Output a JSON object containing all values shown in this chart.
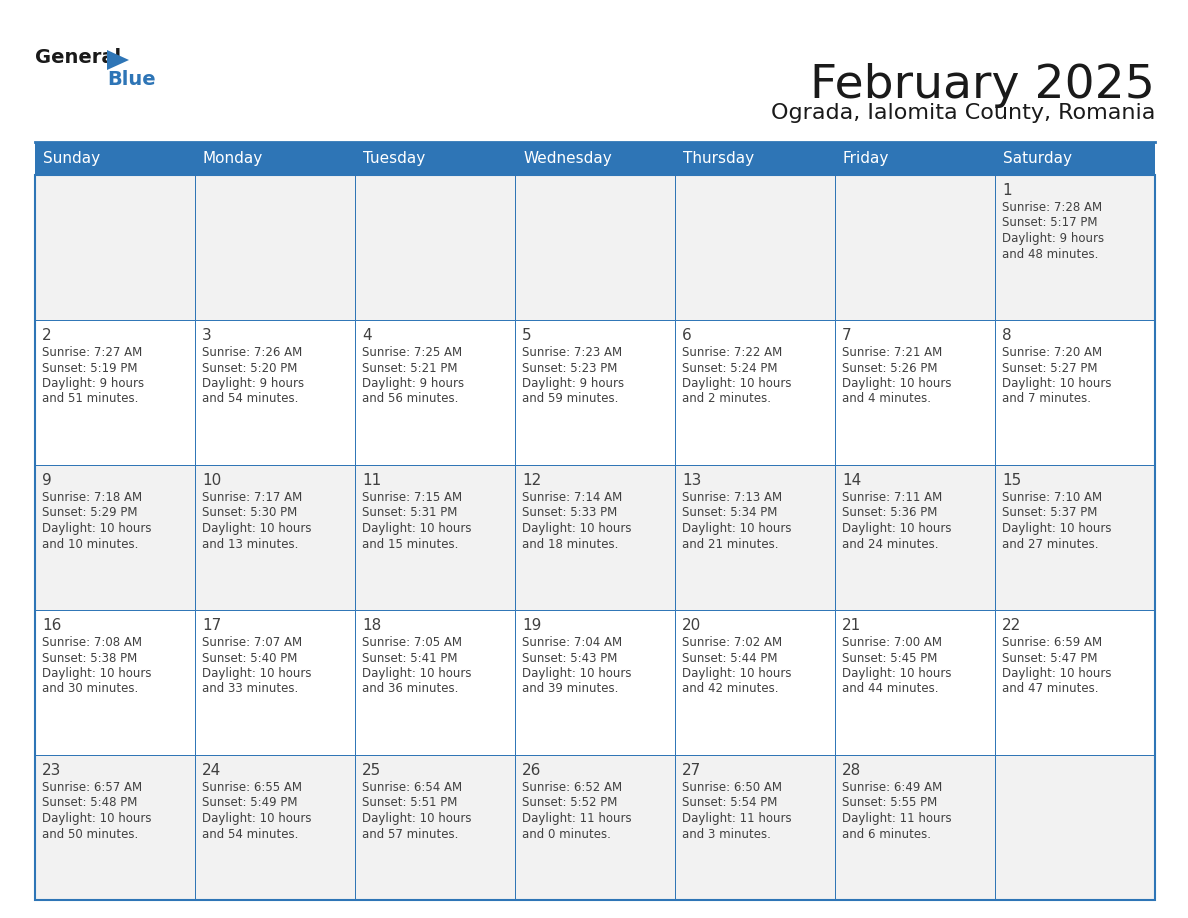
{
  "title": "February 2025",
  "subtitle": "Ograda, Ialomita County, Romania",
  "header_bg": "#2e75b6",
  "header_text_color": "#ffffff",
  "day_headers": [
    "Sunday",
    "Monday",
    "Tuesday",
    "Wednesday",
    "Thursday",
    "Friday",
    "Saturday"
  ],
  "cell_bg_light": "#f2f2f2",
  "cell_bg_white": "#ffffff",
  "cell_border_color": "#2e75b6",
  "day_number_color": "#404040",
  "text_color": "#404040",
  "background_color": "#ffffff",
  "weeks": [
    [
      null,
      null,
      null,
      null,
      null,
      null,
      {
        "day": 1,
        "sunrise": "7:28 AM",
        "sunset": "5:17 PM",
        "daylight_line1": "Daylight: 9 hours",
        "daylight_line2": "and 48 minutes."
      }
    ],
    [
      {
        "day": 2,
        "sunrise": "7:27 AM",
        "sunset": "5:19 PM",
        "daylight_line1": "Daylight: 9 hours",
        "daylight_line2": "and 51 minutes."
      },
      {
        "day": 3,
        "sunrise": "7:26 AM",
        "sunset": "5:20 PM",
        "daylight_line1": "Daylight: 9 hours",
        "daylight_line2": "and 54 minutes."
      },
      {
        "day": 4,
        "sunrise": "7:25 AM",
        "sunset": "5:21 PM",
        "daylight_line1": "Daylight: 9 hours",
        "daylight_line2": "and 56 minutes."
      },
      {
        "day": 5,
        "sunrise": "7:23 AM",
        "sunset": "5:23 PM",
        "daylight_line1": "Daylight: 9 hours",
        "daylight_line2": "and 59 minutes."
      },
      {
        "day": 6,
        "sunrise": "7:22 AM",
        "sunset": "5:24 PM",
        "daylight_line1": "Daylight: 10 hours",
        "daylight_line2": "and 2 minutes."
      },
      {
        "day": 7,
        "sunrise": "7:21 AM",
        "sunset": "5:26 PM",
        "daylight_line1": "Daylight: 10 hours",
        "daylight_line2": "and 4 minutes."
      },
      {
        "day": 8,
        "sunrise": "7:20 AM",
        "sunset": "5:27 PM",
        "daylight_line1": "Daylight: 10 hours",
        "daylight_line2": "and 7 minutes."
      }
    ],
    [
      {
        "day": 9,
        "sunrise": "7:18 AM",
        "sunset": "5:29 PM",
        "daylight_line1": "Daylight: 10 hours",
        "daylight_line2": "and 10 minutes."
      },
      {
        "day": 10,
        "sunrise": "7:17 AM",
        "sunset": "5:30 PM",
        "daylight_line1": "Daylight: 10 hours",
        "daylight_line2": "and 13 minutes."
      },
      {
        "day": 11,
        "sunrise": "7:15 AM",
        "sunset": "5:31 PM",
        "daylight_line1": "Daylight: 10 hours",
        "daylight_line2": "and 15 minutes."
      },
      {
        "day": 12,
        "sunrise": "7:14 AM",
        "sunset": "5:33 PM",
        "daylight_line1": "Daylight: 10 hours",
        "daylight_line2": "and 18 minutes."
      },
      {
        "day": 13,
        "sunrise": "7:13 AM",
        "sunset": "5:34 PM",
        "daylight_line1": "Daylight: 10 hours",
        "daylight_line2": "and 21 minutes."
      },
      {
        "day": 14,
        "sunrise": "7:11 AM",
        "sunset": "5:36 PM",
        "daylight_line1": "Daylight: 10 hours",
        "daylight_line2": "and 24 minutes."
      },
      {
        "day": 15,
        "sunrise": "7:10 AM",
        "sunset": "5:37 PM",
        "daylight_line1": "Daylight: 10 hours",
        "daylight_line2": "and 27 minutes."
      }
    ],
    [
      {
        "day": 16,
        "sunrise": "7:08 AM",
        "sunset": "5:38 PM",
        "daylight_line1": "Daylight: 10 hours",
        "daylight_line2": "and 30 minutes."
      },
      {
        "day": 17,
        "sunrise": "7:07 AM",
        "sunset": "5:40 PM",
        "daylight_line1": "Daylight: 10 hours",
        "daylight_line2": "and 33 minutes."
      },
      {
        "day": 18,
        "sunrise": "7:05 AM",
        "sunset": "5:41 PM",
        "daylight_line1": "Daylight: 10 hours",
        "daylight_line2": "and 36 minutes."
      },
      {
        "day": 19,
        "sunrise": "7:04 AM",
        "sunset": "5:43 PM",
        "daylight_line1": "Daylight: 10 hours",
        "daylight_line2": "and 39 minutes."
      },
      {
        "day": 20,
        "sunrise": "7:02 AM",
        "sunset": "5:44 PM",
        "daylight_line1": "Daylight: 10 hours",
        "daylight_line2": "and 42 minutes."
      },
      {
        "day": 21,
        "sunrise": "7:00 AM",
        "sunset": "5:45 PM",
        "daylight_line1": "Daylight: 10 hours",
        "daylight_line2": "and 44 minutes."
      },
      {
        "day": 22,
        "sunrise": "6:59 AM",
        "sunset": "5:47 PM",
        "daylight_line1": "Daylight: 10 hours",
        "daylight_line2": "and 47 minutes."
      }
    ],
    [
      {
        "day": 23,
        "sunrise": "6:57 AM",
        "sunset": "5:48 PM",
        "daylight_line1": "Daylight: 10 hours",
        "daylight_line2": "and 50 minutes."
      },
      {
        "day": 24,
        "sunrise": "6:55 AM",
        "sunset": "5:49 PM",
        "daylight_line1": "Daylight: 10 hours",
        "daylight_line2": "and 54 minutes."
      },
      {
        "day": 25,
        "sunrise": "6:54 AM",
        "sunset": "5:51 PM",
        "daylight_line1": "Daylight: 10 hours",
        "daylight_line2": "and 57 minutes."
      },
      {
        "day": 26,
        "sunrise": "6:52 AM",
        "sunset": "5:52 PM",
        "daylight_line1": "Daylight: 11 hours",
        "daylight_line2": "and 0 minutes."
      },
      {
        "day": 27,
        "sunrise": "6:50 AM",
        "sunset": "5:54 PM",
        "daylight_line1": "Daylight: 11 hours",
        "daylight_line2": "and 3 minutes."
      },
      {
        "day": 28,
        "sunrise": "6:49 AM",
        "sunset": "5:55 PM",
        "daylight_line1": "Daylight: 11 hours",
        "daylight_line2": "and 6 minutes."
      },
      null
    ]
  ]
}
